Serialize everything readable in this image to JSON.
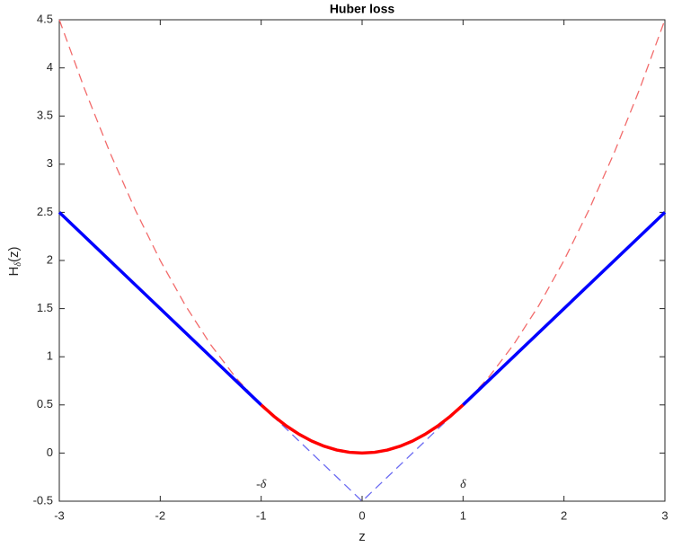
{
  "chart_data": {
    "type": "line",
    "title": "Huber loss",
    "xlabel": "z",
    "ylabel": {
      "main": "H",
      "sub": "δ",
      "tail": "(z)"
    },
    "xlim": [
      -3,
      3
    ],
    "xticks": [
      -3,
      -2,
      -1,
      0,
      1,
      2,
      3
    ],
    "ylim": [
      -0.5,
      4.5
    ],
    "yticks": [
      -0.5,
      0,
      0.5,
      1,
      1.5,
      2,
      2.5,
      3,
      3.5,
      4,
      4.5
    ],
    "grid": false,
    "series": [
      {
        "color": "#f26b6b",
        "dashed": true,
        "width": 1.3,
        "x": [
          -3,
          -2.75,
          -2.5,
          -2.25,
          -2,
          -1.75,
          -1.5,
          -1.25,
          -1,
          -0.75,
          -0.5,
          -0.25,
          0,
          0.25,
          0.5,
          0.75,
          1,
          1.25,
          1.5,
          1.75,
          2,
          2.25,
          2.5,
          2.75,
          3
        ],
        "values": [
          4.5,
          3.78125,
          3.125,
          2.53125,
          2,
          1.53125,
          1.125,
          0.78125,
          0.5,
          0.28125,
          0.125,
          0.03125,
          0,
          0.03125,
          0.125,
          0.28125,
          0.5,
          0.78125,
          1.125,
          1.53125,
          2,
          2.53125,
          3.125,
          3.78125,
          4.5
        ]
      },
      {
        "color": "#6b6bf2",
        "dashed": true,
        "width": 1.3,
        "x": [
          -1,
          0,
          1
        ],
        "values": [
          0.5,
          -0.5,
          0.5
        ]
      },
      {
        "color": "#0000ff",
        "dashed": false,
        "width": 3.5,
        "x": [
          -3,
          -1,
          0,
          1,
          3
        ],
        "values": [
          2.5,
          0.5,
          null,
          0.5,
          2.5
        ]
      },
      {
        "color": "#ff0000",
        "dashed": false,
        "width": 3.5,
        "x": [
          -1,
          -0.875,
          -0.75,
          -0.625,
          -0.5,
          -0.375,
          -0.25,
          -0.125,
          0,
          0.125,
          0.25,
          0.375,
          0.5,
          0.625,
          0.75,
          0.875,
          1
        ],
        "values": [
          0.5,
          0.3828125,
          0.28125,
          0.1953125,
          0.125,
          0.0703125,
          0.03125,
          0.0078125,
          0,
          0.0078125,
          0.03125,
          0.0703125,
          0.125,
          0.1953125,
          0.28125,
          0.3828125,
          0.5
        ]
      }
    ],
    "annotations": [
      {
        "text": "-δ",
        "x": -1,
        "y": -0.33
      },
      {
        "text": "δ",
        "x": 1,
        "y": -0.33
      }
    ]
  }
}
